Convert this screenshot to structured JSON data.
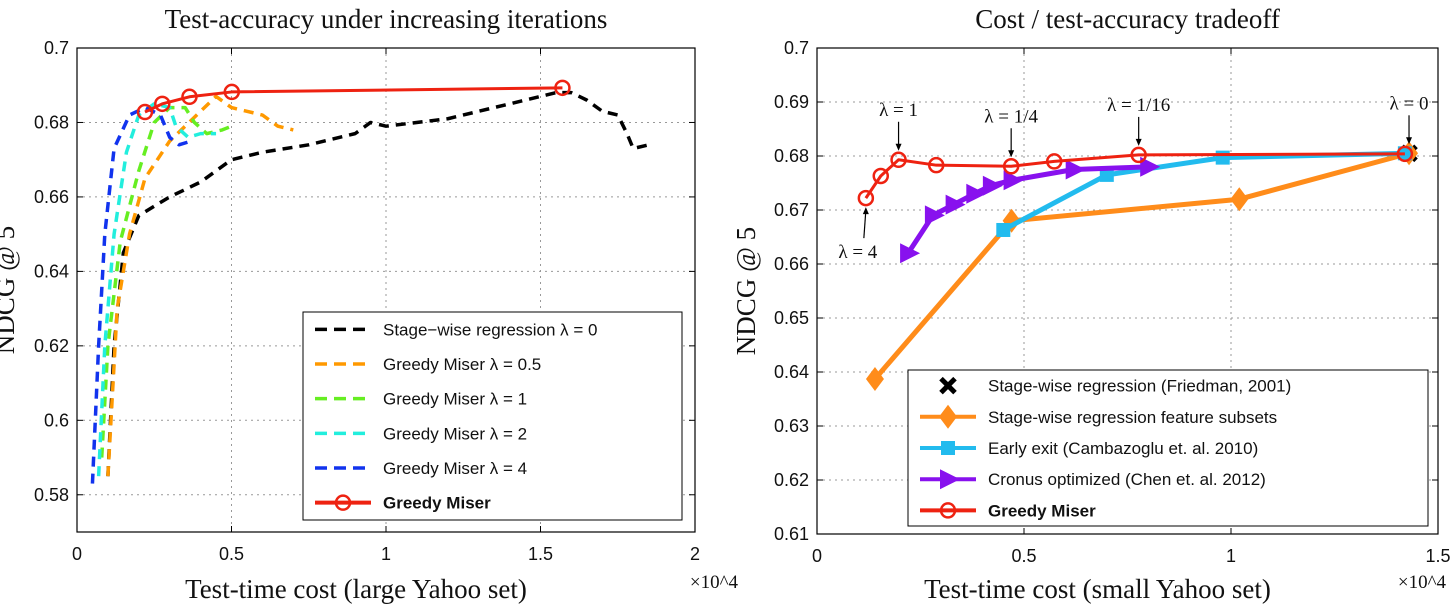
{
  "chart_data": [
    {
      "type": "line",
      "title": "Test-accuracy under increasing iterations",
      "xlabel": "Test-time cost (large Yahoo set)",
      "x_multiplier": "×10^4",
      "ylabel": "NDCG @ 5",
      "xlim": [
        0,
        2
      ],
      "ylim": [
        0.57,
        0.7
      ],
      "xticks": [
        "0",
        "0.5",
        "1",
        "1.5",
        "2"
      ],
      "yticks": [
        "0.58",
        "0.6",
        "0.62",
        "0.64",
        "0.66",
        "0.68",
        "0.7"
      ],
      "grid": true,
      "legend_placement": "bottom-right",
      "series": [
        {
          "name": "Stage−wise regression λ = 0",
          "color": "#000000",
          "style": "dashed",
          "x": [
            0.1,
            0.12,
            0.15,
            0.2,
            0.3,
            0.4,
            0.5,
            0.6,
            0.75,
            0.9,
            0.95,
            1.0,
            1.2,
            1.4,
            1.55,
            1.6,
            1.65,
            1.7,
            1.75,
            1.78,
            1.8,
            1.85
          ],
          "y": [
            0.585,
            0.62,
            0.645,
            0.655,
            0.66,
            0.664,
            0.67,
            0.672,
            0.674,
            0.677,
            0.68,
            0.679,
            0.681,
            0.685,
            0.688,
            0.688,
            0.686,
            0.683,
            0.682,
            0.677,
            0.673,
            0.674
          ]
        },
        {
          "name": "Greedy Miser λ = 0.5",
          "color": "#ff9900",
          "style": "dashed",
          "x": [
            0.1,
            0.13,
            0.17,
            0.22,
            0.3,
            0.4,
            0.45,
            0.5,
            0.55,
            0.6,
            0.65,
            0.7
          ],
          "y": [
            0.585,
            0.63,
            0.65,
            0.665,
            0.675,
            0.683,
            0.687,
            0.684,
            0.683,
            0.682,
            0.679,
            0.678
          ]
        },
        {
          "name": "Greedy Miser λ = 1",
          "color": "#66ee22",
          "style": "dashed",
          "x": [
            0.08,
            0.1,
            0.14,
            0.2,
            0.25,
            0.3,
            0.35,
            0.38,
            0.42,
            0.47,
            0.5
          ],
          "y": [
            0.59,
            0.62,
            0.648,
            0.667,
            0.68,
            0.684,
            0.684,
            0.68,
            0.677,
            0.678,
            0.679
          ]
        },
        {
          "name": "Greedy Miser λ = 2",
          "color": "#22eedd",
          "style": "dashed",
          "x": [
            0.07,
            0.09,
            0.12,
            0.16,
            0.2,
            0.25,
            0.3,
            0.32,
            0.36,
            0.4,
            0.45
          ],
          "y": [
            0.585,
            0.62,
            0.65,
            0.672,
            0.682,
            0.685,
            0.684,
            0.679,
            0.676,
            0.677,
            0.677
          ]
        },
        {
          "name": "Greedy Miser λ = 4",
          "color": "#1133ee",
          "style": "dashed",
          "x": [
            0.05,
            0.07,
            0.09,
            0.12,
            0.17,
            0.22,
            0.27,
            0.3,
            0.33,
            0.37
          ],
          "y": [
            0.583,
            0.62,
            0.65,
            0.673,
            0.682,
            0.684,
            0.682,
            0.676,
            0.674,
            0.675
          ]
        },
        {
          "name": "Greedy Miser",
          "color": "#ee2211",
          "style": "solid",
          "marker": "circle",
          "bold": true,
          "x": [
            0.22,
            0.276,
            0.364,
            0.501,
            1.571
          ],
          "y": [
            0.6828,
            0.685,
            0.6869,
            0.6882,
            0.6893
          ]
        }
      ]
    },
    {
      "type": "line",
      "title": "Cost / test-accuracy tradeoff",
      "xlabel": "Test-time cost (small Yahoo set)",
      "x_multiplier": "×10^4",
      "ylabel": "NDCG @ 5",
      "xlim": [
        0,
        1.5
      ],
      "ylim": [
        0.61,
        0.7
      ],
      "xticks": [
        "0",
        "0.5",
        "1",
        "1.5"
      ],
      "yticks": [
        "0.61",
        "0.62",
        "0.63",
        "0.64",
        "0.65",
        "0.66",
        "0.67",
        "0.68",
        "0.69",
        "0.7"
      ],
      "grid": true,
      "legend_placement": "bottom-right",
      "series": [
        {
          "name": "Stage-wise regression (Friedman, 2001)",
          "color": "#000000",
          "marker": "x",
          "style": "none",
          "x": [
            1.43
          ],
          "y": [
            0.6805
          ]
        },
        {
          "name": "Stage-wise regression feature subsets",
          "color": "#ff8c1a",
          "marker": "diamond",
          "style": "solid",
          "x": [
            0.14,
            0.47,
            1.02,
            1.43
          ],
          "y": [
            0.6387,
            0.668,
            0.672,
            0.6805
          ]
        },
        {
          "name": "Early exit (Cambazoglu et. al. 2010)",
          "color": "#22bbee",
          "marker": "square",
          "style": "solid",
          "x": [
            0.45,
            0.7,
            0.98,
            1.42
          ],
          "y": [
            0.6663,
            0.6765,
            0.6797,
            0.6805
          ]
        },
        {
          "name": "Cronus optimized (Chen et. al. 2012)",
          "color": "#8811ee",
          "marker": "triangle-right",
          "style": "solid",
          "x": [
            0.22,
            0.28,
            0.33,
            0.38,
            0.42,
            0.47,
            0.62,
            0.8
          ],
          "y": [
            0.662,
            0.669,
            0.671,
            0.673,
            0.6745,
            0.6755,
            0.6775,
            0.678
          ]
        },
        {
          "name": "Greedy Miser",
          "color": "#ee2211",
          "marker": "circle",
          "style": "solid",
          "bold": true,
          "x": [
            0.118,
            0.154,
            0.197,
            0.288,
            0.469,
            0.573,
            0.777,
            1.42
          ],
          "y": [
            0.6722,
            0.6763,
            0.6793,
            0.6783,
            0.6781,
            0.679,
            0.6802,
            0.6804
          ]
        }
      ],
      "annotations": [
        {
          "text": "λ = 4",
          "x": 0.118,
          "y": 0.6722,
          "pos": "below"
        },
        {
          "text": "λ = 1",
          "x": 0.197,
          "y": 0.6793,
          "pos": "above"
        },
        {
          "text": "λ = 1/4",
          "x": 0.469,
          "y": 0.6781,
          "pos": "above"
        },
        {
          "text": "λ = 1/16",
          "x": 0.777,
          "y": 0.6802,
          "pos": "above"
        },
        {
          "text": "λ = 0",
          "x": 1.43,
          "y": 0.6805,
          "pos": "above"
        }
      ]
    }
  ]
}
